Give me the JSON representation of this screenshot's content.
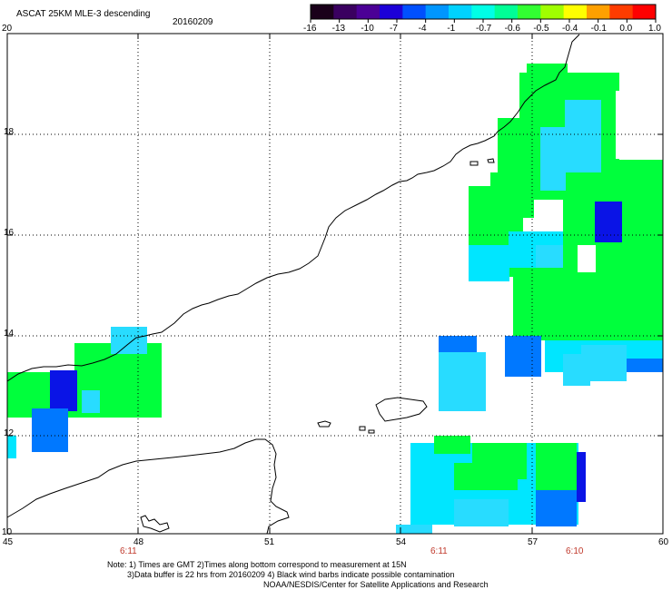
{
  "title": "ASCAT 25KM MLE-3 descending",
  "date": "20160209",
  "colorbar": {
    "labels": [
      "-16",
      "-13",
      "-10",
      "-7",
      "-4",
      "-1",
      "-0.7",
      "-0.6",
      "-0.5",
      "-0.4",
      "-0.1",
      "0.0",
      "1.0"
    ],
    "colors": [
      "#1a001a",
      "#3a0060",
      "#4b0096",
      "#1c00d8",
      "#0050ff",
      "#0096ff",
      "#00d2ff",
      "#00ffe6",
      "#00ff96",
      "#32ff32",
      "#a0ff00",
      "#ffff00",
      "#ffa000",
      "#ff3c00",
      "#ff0000"
    ]
  },
  "axes": {
    "lat_labels": [
      "20",
      "18",
      "16",
      "14",
      "12",
      "10"
    ],
    "lon_labels": [
      "45",
      "48",
      "51",
      "54",
      "57",
      "60"
    ],
    "time_labels": [
      "6:11",
      "6:11",
      "6:10"
    ]
  },
  "notes": {
    "line1": "Note: 1) Times are GMT 2)Times along bottom correspond to measurement at 15N",
    "line2": "3)Data buffer is 22 hrs from 20160209 4) Black wind barbs indicate possible contamination",
    "line3": "NOAA/NESDIS/Center for Satellite Applications and Research"
  },
  "legend_colors": {
    "green": "#00ff3c",
    "cyan": "#00e6ff",
    "blue": "#0a14e6",
    "mid_blue": "#0078ff",
    "light_cyan": "#28dcff"
  }
}
